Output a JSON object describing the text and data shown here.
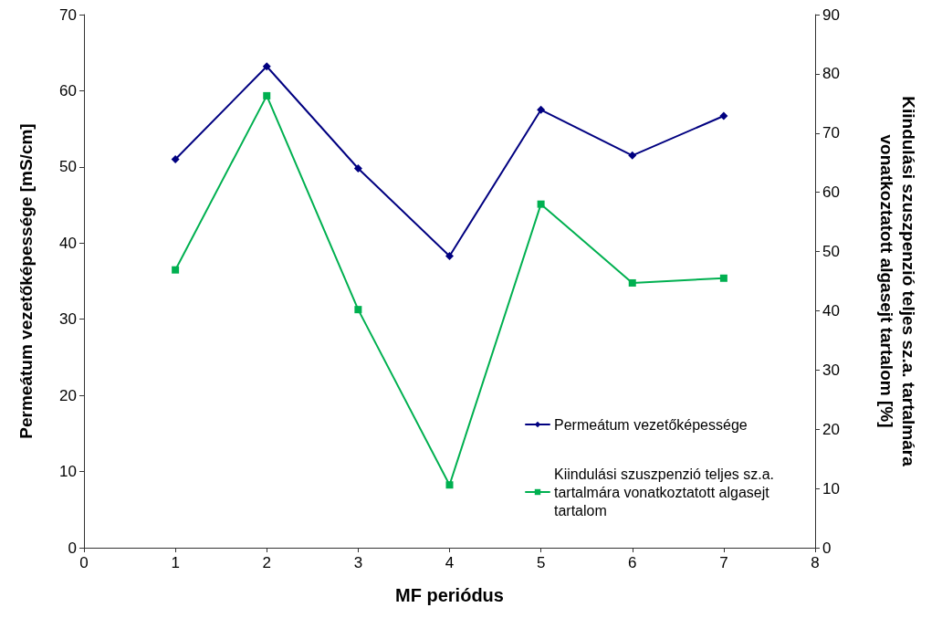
{
  "chart_data": {
    "type": "line",
    "xlabel": "MF periódus",
    "ylabel": "Permeátum vezetőképessége [mS/cm]",
    "y2label": "Kiindulási szuszpenzió teljes sz.a. tartalmára vonatkoztatott algasejt tartalom [%]",
    "x": [
      1,
      2,
      3,
      4,
      5,
      6,
      7
    ],
    "series": [
      {
        "name": "Permeátum vezetőképessége",
        "color": "#000080",
        "marker": "diamond",
        "values": [
          51.0,
          63.2,
          49.8,
          38.3,
          57.5,
          51.5,
          56.7
        ]
      },
      {
        "name": "Kiindulási szuszpenzió teljes sz.a. tartalmára vonatkoztatott algasejt tartalom",
        "color": "#00b050",
        "marker": "square",
        "axis": "y2",
        "values": [
          46.9,
          76.3,
          40.2,
          10.6,
          58.0,
          44.7,
          45.5
        ]
      }
    ],
    "xlim": [
      0,
      8
    ],
    "xticks": [
      0,
      1,
      2,
      3,
      4,
      5,
      6,
      7,
      8
    ],
    "ylim": [
      0,
      70
    ],
    "yticks": [
      0,
      10,
      20,
      30,
      40,
      50,
      60,
      70
    ],
    "y2lim": [
      0,
      90
    ],
    "y2ticks": [
      0,
      10,
      20,
      30,
      40,
      50,
      60,
      70,
      80,
      90
    ],
    "grid": false,
    "legend": "bottom right",
    "line_style": "solid"
  }
}
